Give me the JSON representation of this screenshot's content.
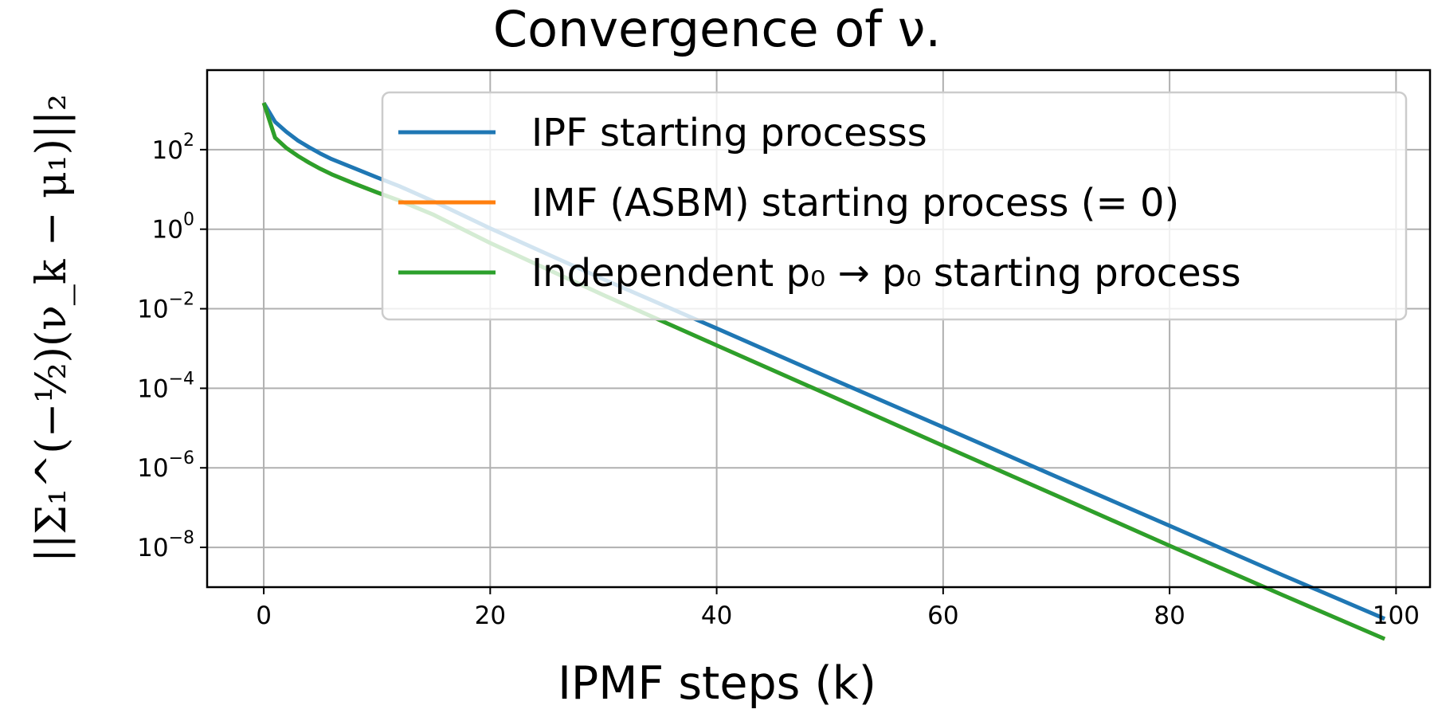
{
  "chart_data": {
    "type": "line",
    "title": "Convergence of ν.",
    "xlabel": "IPMF steps (k)",
    "ylabel": "||Σ₁^(−½)(ν_k − μ₁)||₂",
    "xlim": [
      -5,
      103
    ],
    "ylim": [
      1e-09,
      10000.0
    ],
    "yscale": "log",
    "grid": true,
    "legend_position": "top-right",
    "x_ticks": [
      0,
      20,
      40,
      60,
      80,
      100
    ],
    "y_tick_exponents": [
      2,
      0,
      -2,
      -4,
      -6,
      -8
    ],
    "series": [
      {
        "name": "IPF starting processs",
        "color": "#1f77b4",
        "x": [
          0,
          1,
          2,
          3,
          4,
          5,
          6,
          8,
          10,
          12,
          15,
          20,
          30,
          40,
          50,
          60,
          70,
          80,
          90,
          99
        ],
        "y": [
          1500,
          500,
          280,
          170,
          115,
          80,
          58,
          34,
          20,
          12,
          5.0,
          1.05,
          0.055,
          0.0032,
          0.00018,
          1.05e-05,
          6e-07,
          3.5e-08,
          2e-09,
          1.6e-10
        ]
      },
      {
        "name": "IMF (ASBM) starting process (= 0)",
        "color": "#ff7f0e",
        "x": [
          0,
          1,
          2,
          3,
          4,
          5,
          6,
          8,
          10,
          12,
          15,
          20,
          30,
          40,
          50,
          60,
          70,
          80,
          90,
          99
        ],
        "y": [
          1500,
          200,
          110,
          70,
          47,
          33,
          24,
          14,
          8.4,
          5.2,
          2.3,
          0.45,
          0.022,
          0.0012,
          6.6e-05,
          3.6e-06,
          2e-07,
          1.1e-08,
          6.3e-10,
          5e-11
        ]
      },
      {
        "name": "Independent p₀ → p₀ starting process",
        "color": "#2ca02c",
        "x": [
          0,
          1,
          2,
          3,
          4,
          5,
          6,
          8,
          10,
          12,
          15,
          20,
          30,
          40,
          50,
          60,
          70,
          80,
          90,
          99
        ],
        "y": [
          1500,
          200,
          110,
          70,
          47,
          33,
          24,
          14,
          8.4,
          5.2,
          2.3,
          0.45,
          0.022,
          0.0012,
          6.6e-05,
          3.6e-06,
          2e-07,
          1.1e-08,
          6.3e-10,
          5e-11
        ]
      }
    ]
  }
}
